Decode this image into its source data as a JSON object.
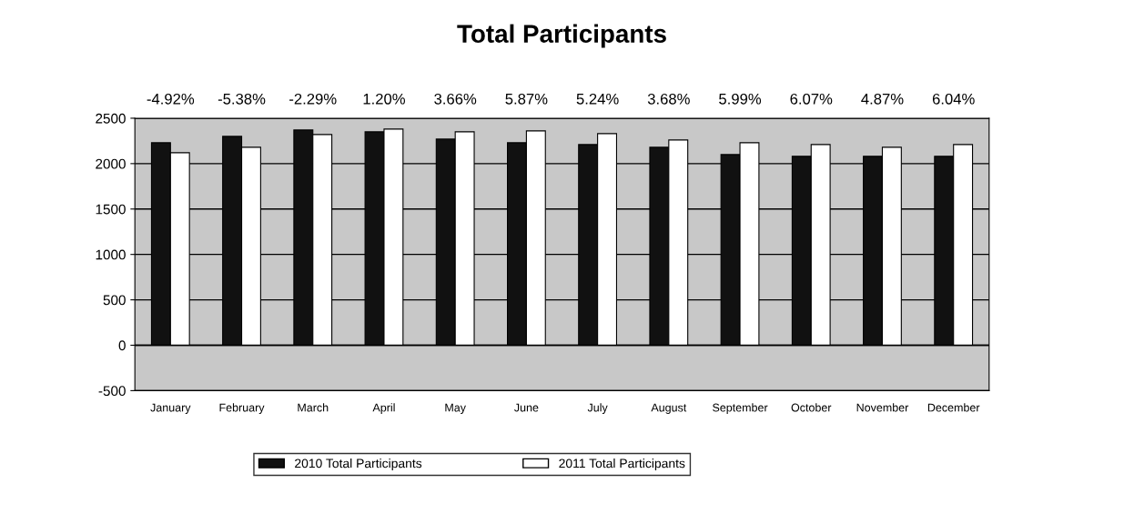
{
  "chart_data": {
    "type": "bar",
    "title": "Total Participants",
    "categories": [
      "January",
      "February",
      "March",
      "April",
      "May",
      "June",
      "July",
      "August",
      "September",
      "October",
      "November",
      "December"
    ],
    "series": [
      {
        "name": "2010 Total Participants",
        "color": "#111111",
        "values": [
          2230,
          2300,
          2370,
          2350,
          2270,
          2230,
          2210,
          2180,
          2100,
          2080,
          2080,
          2080
        ]
      },
      {
        "name": "2011 Total Participants",
        "color": "#ffffff",
        "values": [
          2120,
          2180,
          2320,
          2380,
          2350,
          2360,
          2330,
          2260,
          2230,
          2210,
          2180,
          2210
        ]
      }
    ],
    "annotations": [
      "-4.92%",
      "-5.38%",
      "-2.29%",
      "1.20%",
      "3.66%",
      "5.87%",
      "5.24%",
      "3.68%",
      "5.99%",
      "6.07%",
      "4.87%",
      "6.04%"
    ],
    "ylim": [
      -500,
      2500
    ],
    "yticks": [
      -500,
      0,
      500,
      1000,
      1500,
      2000,
      2500
    ],
    "grid": "y",
    "legend": "bottom"
  }
}
